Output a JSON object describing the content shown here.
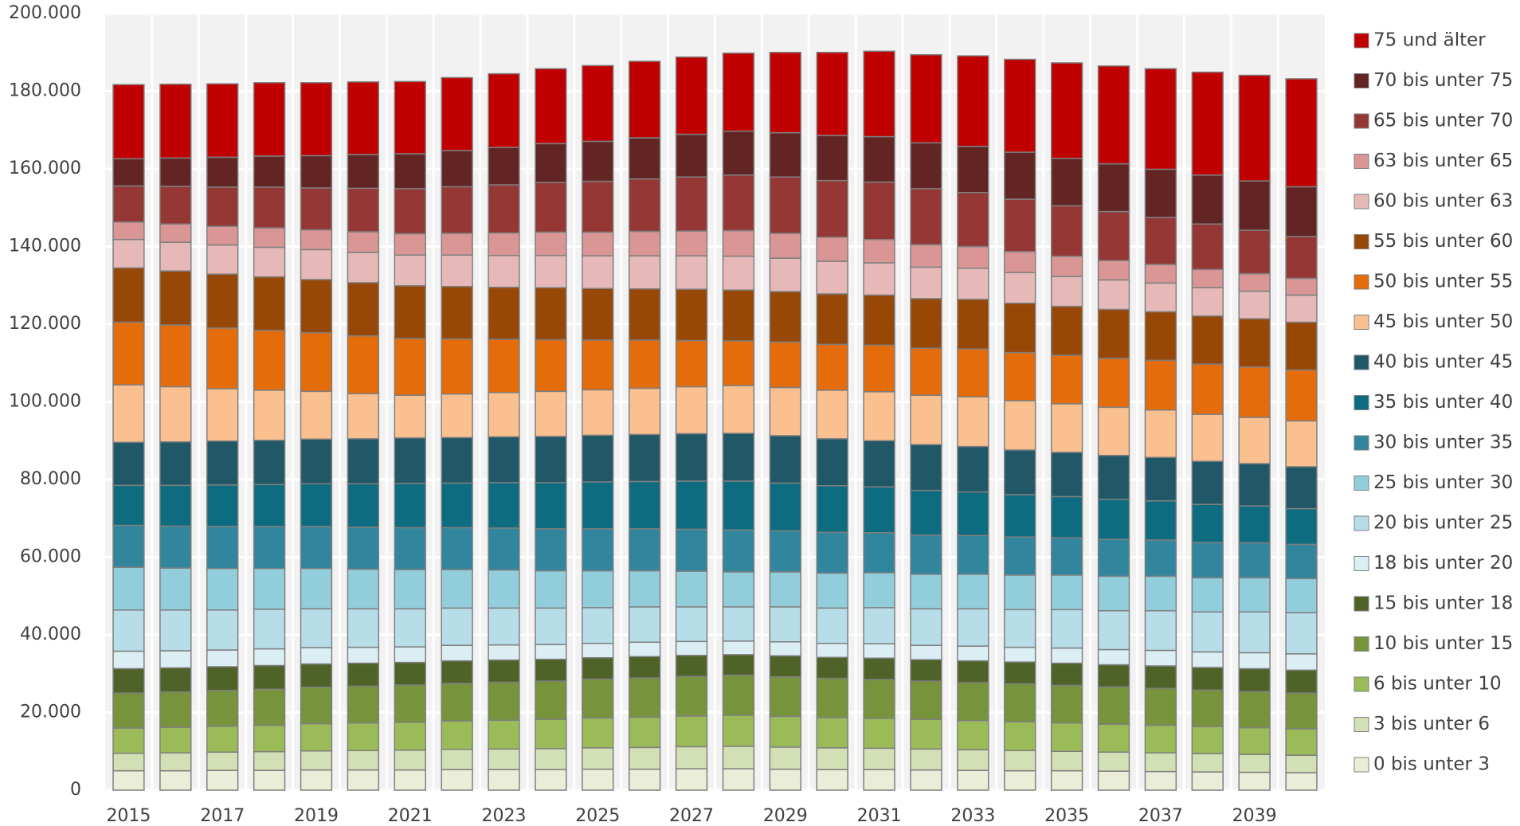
{
  "chart_data": {
    "type": "stacked_bar",
    "categories": [
      "2015",
      null,
      "2017",
      null,
      "2019",
      null,
      "2021",
      null,
      "2023",
      null,
      "2025",
      null,
      "2027",
      null,
      "2029",
      null,
      "2031",
      null,
      "2033",
      null,
      "2035",
      null,
      "2037",
      null,
      "2039",
      null
    ],
    "ylim": [
      0,
      200000
    ],
    "yticks": [
      0,
      {
        "value": 20000,
        "label": "20.000"
      },
      {
        "value": 40000,
        "label": "40.000"
      },
      {
        "value": 60000,
        "label": "60.000"
      },
      {
        "value": 80000,
        "label": "80.000"
      },
      {
        "value": 100000,
        "label": "100.000"
      },
      {
        "value": 120000,
        "label": "120.000"
      },
      {
        "value": 140000,
        "label": "140.000"
      },
      {
        "value": 160000,
        "label": "160.000"
      },
      {
        "value": 180000,
        "label": "180.000"
      },
      {
        "value": 200000,
        "label": "200.000"
      }
    ],
    "grid": true,
    "legend": "right",
    "series": [
      {
        "name": "0 bis unter 3",
        "color": "#eaedd8",
        "values": [
          5000,
          5000,
          5100,
          5100,
          5200,
          5200,
          5200,
          5300,
          5300,
          5300,
          5400,
          5400,
          5500,
          5500,
          5400,
          5300,
          5300,
          5200,
          5100,
          5000,
          5000,
          4900,
          4800,
          4700,
          4600,
          4500
        ]
      },
      {
        "name": "3 bis unter 6",
        "color": "#d3e0b5",
        "values": [
          4500,
          4600,
          4700,
          4800,
          4900,
          5000,
          5100,
          5200,
          5300,
          5400,
          5500,
          5600,
          5700,
          5800,
          5700,
          5600,
          5500,
          5400,
          5300,
          5200,
          5000,
          4900,
          4800,
          4700,
          4600,
          4500
        ]
      },
      {
        "name": "6 bis unter 10",
        "color": "#9bbb59",
        "values": [
          6500,
          6600,
          6700,
          6800,
          7000,
          7100,
          7200,
          7300,
          7400,
          7500,
          7700,
          7800,
          7900,
          8000,
          7900,
          7800,
          7700,
          7600,
          7500,
          7400,
          7300,
          7200,
          7100,
          7000,
          6900,
          6800
        ]
      },
      {
        "name": "10 bis unter 15",
        "color": "#77933c",
        "values": [
          9000,
          9100,
          9200,
          9300,
          9400,
          9500,
          9600,
          9700,
          9800,
          9900,
          10000,
          10100,
          10200,
          10300,
          10200,
          10100,
          10000,
          9900,
          9800,
          9800,
          9700,
          9600,
          9500,
          9400,
          9300,
          9200
        ]
      },
      {
        "name": "15 bis unter 18",
        "color": "#4f6228",
        "values": [
          6300,
          6200,
          6100,
          6100,
          6000,
          5900,
          5800,
          5800,
          5700,
          5600,
          5500,
          5500,
          5400,
          5300,
          5400,
          5400,
          5500,
          5500,
          5600,
          5600,
          5700,
          5700,
          5800,
          5800,
          5900,
          5900
        ]
      },
      {
        "name": "18 bis unter 20",
        "color": "#dbeef4",
        "values": [
          4500,
          4400,
          4300,
          4300,
          4200,
          4100,
          4000,
          4000,
          3900,
          3800,
          3700,
          3700,
          3600,
          3500,
          3600,
          3600,
          3700,
          3700,
          3800,
          3800,
          3900,
          3900,
          4000,
          4000,
          4100,
          4200
        ]
      },
      {
        "name": "20 bis unter 25",
        "color": "#b7dde8",
        "values": [
          10600,
          10500,
          10300,
          10200,
          10000,
          9900,
          9800,
          9600,
          9500,
          9400,
          9200,
          9100,
          8900,
          8800,
          9000,
          9100,
          9300,
          9400,
          9600,
          9700,
          9900,
          10000,
          10200,
          10300,
          10500,
          10600
        ]
      },
      {
        "name": "25 bis unter 30",
        "color": "#92cddc",
        "values": [
          11000,
          10800,
          10700,
          10500,
          10400,
          10200,
          10100,
          9900,
          9800,
          9600,
          9500,
          9300,
          9200,
          9000,
          9000,
          9000,
          9000,
          8900,
          8900,
          8900,
          8900,
          8900,
          8900,
          8800,
          8800,
          8800
        ]
      },
      {
        "name": "30 bis unter 35",
        "color": "#31859c",
        "values": [
          10800,
          10800,
          10800,
          10800,
          10800,
          10800,
          10800,
          10800,
          10800,
          10800,
          10800,
          10800,
          10800,
          10800,
          10600,
          10500,
          10300,
          10100,
          10000,
          9800,
          9600,
          9500,
          9300,
          9100,
          9000,
          8800
        ]
      },
      {
        "name": "35 bis unter 40",
        "color": "#0e6c80",
        "values": [
          10300,
          10500,
          10700,
          10800,
          11000,
          11200,
          11400,
          11500,
          11700,
          11900,
          12100,
          12200,
          12400,
          12600,
          12300,
          12000,
          11800,
          11500,
          11200,
          10900,
          10600,
          10300,
          10100,
          9800,
          9500,
          9200
        ]
      },
      {
        "name": "40 bis unter 45",
        "color": "#215867",
        "values": [
          11100,
          11200,
          11300,
          11400,
          11500,
          11600,
          11700,
          11700,
          11800,
          11900,
          12000,
          12100,
          12200,
          12300,
          12200,
          12100,
          11900,
          11800,
          11700,
          11500,
          11400,
          11300,
          11200,
          11100,
          10900,
          10800
        ]
      },
      {
        "name": "45 bis unter 50",
        "color": "#fac090",
        "values": [
          14800,
          14200,
          13500,
          12900,
          12300,
          11600,
          11000,
          11200,
          11400,
          11600,
          11700,
          11900,
          12100,
          12300,
          12400,
          12500,
          12600,
          12700,
          12800,
          12700,
          12500,
          12400,
          12200,
          12100,
          11900,
          11800
        ]
      },
      {
        "name": "50 bis unter 55",
        "color": "#e46c0a",
        "values": [
          16100,
          15900,
          15600,
          15400,
          15100,
          14900,
          14600,
          14200,
          13700,
          13300,
          12800,
          12400,
          11900,
          11500,
          11700,
          11800,
          12000,
          12100,
          12300,
          12400,
          12500,
          12600,
          12800,
          12900,
          13000,
          13100
        ]
      },
      {
        "name": "55 bis unter 60",
        "color": "#974806",
        "values": [
          14000,
          13900,
          13900,
          13800,
          13700,
          13700,
          13600,
          13500,
          13400,
          13400,
          13300,
          13200,
          13200,
          13100,
          13000,
          13000,
          12900,
          12800,
          12800,
          12700,
          12600,
          12600,
          12500,
          12400,
          12400,
          12300
        ]
      },
      {
        "name": "60 bis unter 63",
        "color": "#e6b9b8",
        "values": [
          7300,
          7400,
          7500,
          7600,
          7700,
          7800,
          7900,
          8100,
          8200,
          8300,
          8400,
          8500,
          8600,
          8700,
          8600,
          8400,
          8300,
          8100,
          8000,
          7900,
          7700,
          7600,
          7400,
          7300,
          7100,
          7000
        ]
      },
      {
        "name": "63 bis unter 65",
        "color": "#d99694",
        "values": [
          4500,
          4700,
          4800,
          5000,
          5100,
          5300,
          5500,
          5600,
          5800,
          6000,
          6100,
          6300,
          6400,
          6600,
          6400,
          6200,
          6000,
          5800,
          5600,
          5400,
          5200,
          5000,
          4800,
          4700,
          4500,
          4300
        ]
      },
      {
        "name": "65 bis unter 70",
        "color": "#953735",
        "values": [
          9300,
          9700,
          10100,
          10500,
          10800,
          11200,
          11600,
          12000,
          12400,
          12800,
          13100,
          13500,
          13900,
          14300,
          14500,
          14600,
          14800,
          14400,
          13900,
          13500,
          13000,
          12600,
          12100,
          11700,
          11200,
          10800
        ]
      },
      {
        "name": "70 bis unter 75",
        "color": "#632523",
        "values": [
          7000,
          7300,
          7700,
          8000,
          8300,
          8700,
          9000,
          9300,
          9600,
          10000,
          10300,
          10600,
          11000,
          11300,
          11400,
          11600,
          11700,
          11800,
          11900,
          12100,
          12200,
          12300,
          12400,
          12600,
          12700,
          12800
        ]
      },
      {
        "name": "75 und älter",
        "color": "#c00000",
        "values": [
          19100,
          19000,
          18900,
          18900,
          18800,
          18700,
          18600,
          18800,
          19000,
          19300,
          19500,
          19700,
          19900,
          20100,
          20700,
          21400,
          22000,
          22700,
          23300,
          23900,
          24600,
          25200,
          25900,
          26500,
          27200,
          27800
        ]
      }
    ]
  }
}
